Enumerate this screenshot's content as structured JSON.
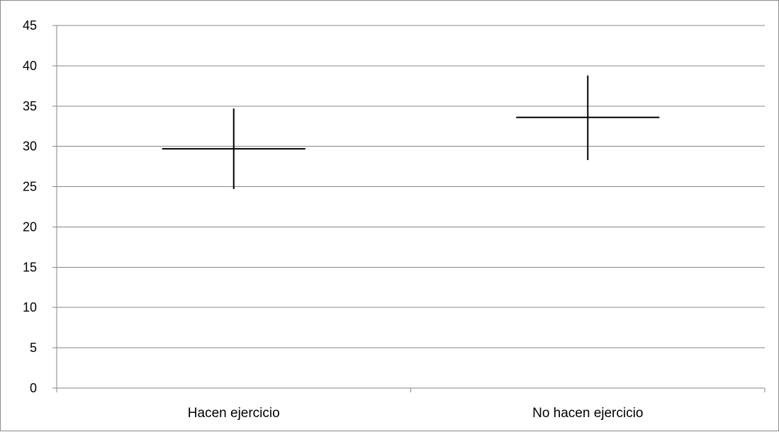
{
  "chart_data": {
    "type": "scatter",
    "title": "",
    "xlabel": "",
    "ylabel": "",
    "categories": [
      "Hacen ejercicio",
      "No hacen ejercicio"
    ],
    "series": [
      {
        "values": [
          29.7,
          33.6
        ],
        "error_low": [
          24.7,
          28.3
        ],
        "error_high": [
          34.7,
          38.8
        ]
      }
    ],
    "ylim": [
      0,
      45
    ],
    "y_ticks": [
      0,
      5,
      10,
      15,
      20,
      25,
      30,
      35,
      40,
      45
    ],
    "grid": true,
    "legend": "none",
    "colors": {
      "marks": "#000000",
      "grid": "#868686",
      "axis": "#868686",
      "frame": "#8c8c8c"
    }
  }
}
